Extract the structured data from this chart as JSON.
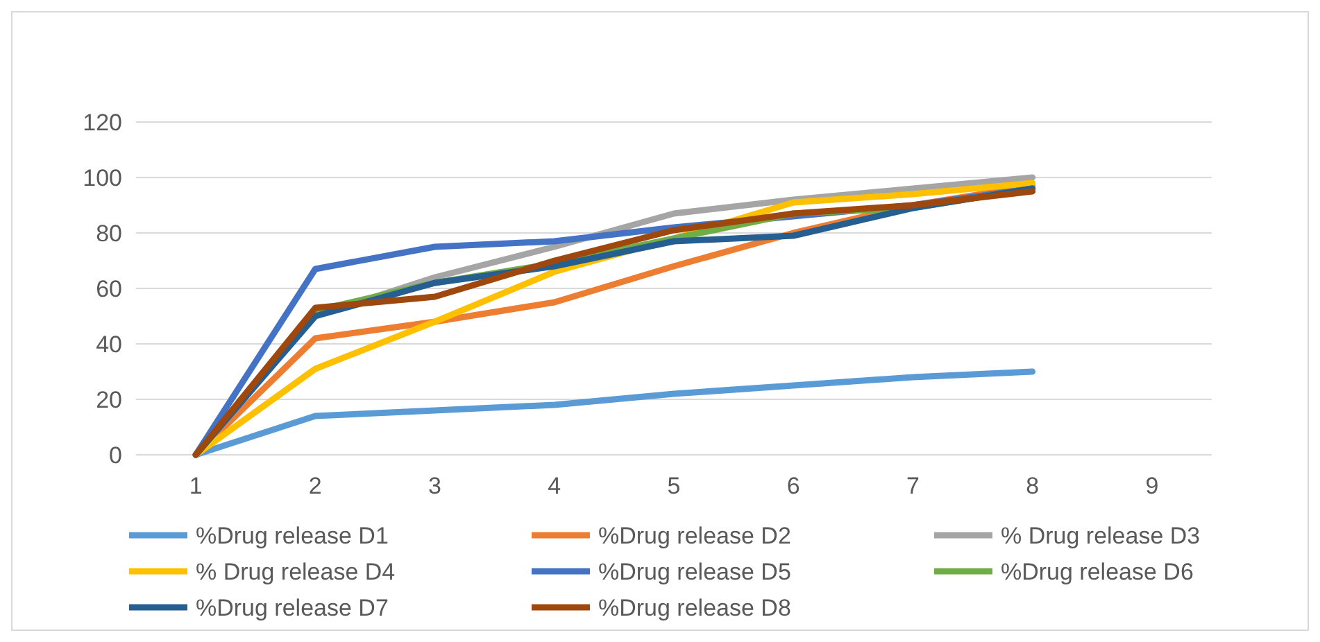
{
  "chart_data": {
    "type": "line",
    "categories": [
      "1",
      "2",
      "3",
      "4",
      "5",
      "6",
      "7",
      "8",
      "9"
    ],
    "ylim": [
      0,
      120
    ],
    "yticks": [
      0,
      20,
      40,
      60,
      80,
      100,
      120
    ],
    "grid": "y",
    "legend": "bottom",
    "marker": "none",
    "line_style": "solid",
    "series": [
      {
        "name": "%Drug release D1",
        "color": "#5b9bd5",
        "values": [
          0,
          14,
          16,
          18,
          22,
          25,
          28,
          30,
          null
        ]
      },
      {
        "name": "%Drug release D2",
        "color": "#ed7d31",
        "values": [
          0,
          42,
          48,
          55,
          68,
          80,
          90,
          97,
          null
        ]
      },
      {
        "name": "% Drug release D3",
        "color": "#a5a5a5",
        "values": [
          0,
          50,
          64,
          75,
          87,
          92,
          96,
          100,
          null
        ]
      },
      {
        "name": "% Drug release D4",
        "color": "#ffc000",
        "values": [
          0,
          31,
          48,
          66,
          78,
          91,
          94,
          98,
          null
        ]
      },
      {
        "name": "%Drug release D5",
        "color": "#4472c4",
        "values": [
          0,
          67,
          75,
          77,
          82,
          86,
          90,
          96,
          null
        ]
      },
      {
        "name": "%Drug release D6",
        "color": "#70ad47",
        "values": [
          0,
          52,
          62,
          69,
          78,
          87,
          89,
          96,
          null
        ]
      },
      {
        "name": "%Drug release D7",
        "color": "#255e91",
        "values": [
          0,
          50,
          62,
          68,
          77,
          79,
          89,
          96,
          null
        ]
      },
      {
        "name": "%Drug release D8",
        "color": "#9e480e",
        "values": [
          0,
          53,
          57,
          70,
          81,
          87,
          90,
          95,
          null
        ]
      }
    ]
  }
}
